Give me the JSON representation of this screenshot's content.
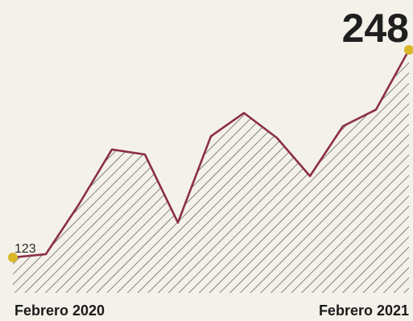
{
  "chart_data": {
    "type": "area",
    "x_labels": [
      "Febrero 2020",
      "Febrero 2021"
    ],
    "x": [
      0,
      1,
      2,
      3,
      4,
      5,
      6,
      7,
      8,
      9,
      10,
      11,
      12
    ],
    "values": [
      123,
      125,
      155,
      188,
      185,
      144,
      196,
      210,
      195,
      172,
      202,
      212,
      248
    ],
    "start_value_label": "123",
    "end_value_label": "248",
    "ylim": [
      100,
      260
    ],
    "grid": false,
    "legend": "none",
    "colors": {
      "line": "#8b2e4a",
      "hatch": "#4a4a4a",
      "marker": "#d9b72a",
      "background": "#f4f1ea"
    }
  }
}
